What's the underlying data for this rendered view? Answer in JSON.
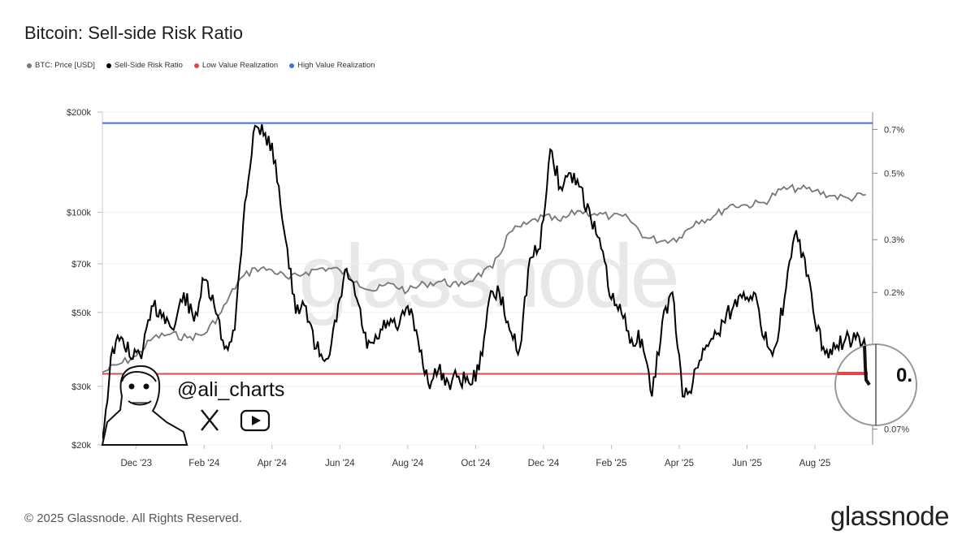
{
  "title": "Bitcoin: Sell-side Risk Ratio",
  "legend": [
    {
      "label": "BTC: Price [USD]",
      "color": "#777777"
    },
    {
      "label": "Sell-Side Risk Ratio",
      "color": "#000000"
    },
    {
      "label": "Low Value Realization",
      "color": "#e04848"
    },
    {
      "label": "High Value Realization",
      "color": "#3d74d9"
    }
  ],
  "watermark": "glassnode",
  "handle": "@ali_charts",
  "zoom_label": "0.",
  "copyright": "© 2025 Glassnode. All Rights Reserved.",
  "brand": "glassnode",
  "social_icons": [
    "x-icon",
    "youtube-icon"
  ],
  "chart_data": {
    "type": "line",
    "title": "Bitcoin: Sell-side Risk Ratio",
    "x_range": [
      "2023-11",
      "2025-09"
    ],
    "x_ticks": [
      "Dec '23",
      "Feb '24",
      "Apr '24",
      "Jun '24",
      "Aug '24",
      "Oct '24",
      "Dec '24",
      "Feb '25",
      "Apr '25",
      "Jun '25",
      "Aug '25"
    ],
    "x_tick_values": [
      1.0,
      3.0,
      5.0,
      7.0,
      9.0,
      11.0,
      13.0,
      15.0,
      17.0,
      19.0,
      21.0
    ],
    "x_domain": [
      0,
      22.7
    ],
    "y_left": {
      "label": "BTC: Price [USD]",
      "scale": "log",
      "ticks": [
        "$20k",
        "$30k",
        "$50k",
        "$70k",
        "$100k",
        "$200k"
      ],
      "tick_values": [
        20000,
        30000,
        50000,
        70000,
        100000,
        200000
      ],
      "range": [
        20000,
        200000
      ]
    },
    "y_right": {
      "label": "Sell-Side Risk Ratio",
      "scale": "log",
      "ticks": [
        "0.07%",
        "0.2%",
        "0.3%",
        "0.5%",
        "0.7%"
      ],
      "tick_values": [
        0.07,
        0.2,
        0.3,
        0.5,
        0.7
      ],
      "range": [
        0.062,
        0.8
      ]
    },
    "low_value_realization": 0.107,
    "high_value_realization": 0.735,
    "series": [
      {
        "name": "BTC: Price [USD]",
        "axis": "left",
        "color": "#777777",
        "x": [
          0,
          0.5,
          1.0,
          1.5,
          2.0,
          2.5,
          3.0,
          3.5,
          4.0,
          4.5,
          5.0,
          5.5,
          6.0,
          6.5,
          7.0,
          7.5,
          8.0,
          8.5,
          9.0,
          9.5,
          10.0,
          10.5,
          11.0,
          11.5,
          12.0,
          12.5,
          13.0,
          13.5,
          14.0,
          14.5,
          15.0,
          15.5,
          16.0,
          16.5,
          17.0,
          17.5,
          18.0,
          18.5,
          19.0,
          19.5,
          20.0,
          20.5,
          21.0,
          21.5,
          22.0,
          22.5
        ],
        "values": [
          33000,
          35000,
          37000,
          42000,
          43000,
          42000,
          43000,
          50000,
          62000,
          68000,
          67000,
          63000,
          66000,
          68000,
          67000,
          62000,
          58000,
          61000,
          58000,
          61000,
          62000,
          60000,
          64000,
          68000,
          87000,
          92000,
          97000,
          94000,
          101000,
          99000,
          97000,
          96000,
          84000,
          82000,
          84000,
          94000,
          97000,
          105000,
          105000,
          107000,
          117000,
          118000,
          116000,
          112000,
          110000,
          113000
        ]
      },
      {
        "name": "Sell-Side Risk Ratio",
        "axis": "right",
        "color": "#000000",
        "x": [
          0,
          0.3,
          0.6,
          0.9,
          1.2,
          1.5,
          1.8,
          2.1,
          2.4,
          2.7,
          3.0,
          3.3,
          3.6,
          3.9,
          4.2,
          4.5,
          4.8,
          5.1,
          5.4,
          5.7,
          6.0,
          6.3,
          6.6,
          6.9,
          7.2,
          7.5,
          7.8,
          8.1,
          8.4,
          8.7,
          9.0,
          9.3,
          9.6,
          9.9,
          10.2,
          10.5,
          10.8,
          11.1,
          11.4,
          11.7,
          12.0,
          12.3,
          12.6,
          12.9,
          13.2,
          13.5,
          13.8,
          14.1,
          14.4,
          14.7,
          15.0,
          15.3,
          15.6,
          15.9,
          16.2,
          16.5,
          16.8,
          17.1,
          17.4,
          17.7,
          18.0,
          18.3,
          18.6,
          18.9,
          19.2,
          19.5,
          19.8,
          20.1,
          20.4,
          20.7,
          21.0,
          21.3,
          21.6,
          21.9,
          22.2,
          22.5,
          22.7
        ],
        "values": [
          0.065,
          0.13,
          0.14,
          0.12,
          0.13,
          0.18,
          0.17,
          0.15,
          0.2,
          0.16,
          0.22,
          0.18,
          0.13,
          0.15,
          0.4,
          0.72,
          0.68,
          0.55,
          0.3,
          0.17,
          0.18,
          0.13,
          0.12,
          0.16,
          0.24,
          0.19,
          0.13,
          0.14,
          0.16,
          0.15,
          0.18,
          0.14,
          0.1,
          0.11,
          0.1,
          0.105,
          0.1,
          0.11,
          0.19,
          0.2,
          0.15,
          0.13,
          0.26,
          0.28,
          0.6,
          0.45,
          0.5,
          0.45,
          0.35,
          0.28,
          0.19,
          0.17,
          0.14,
          0.14,
          0.09,
          0.16,
          0.2,
          0.09,
          0.1,
          0.13,
          0.14,
          0.16,
          0.18,
          0.2,
          0.2,
          0.14,
          0.13,
          0.19,
          0.31,
          0.26,
          0.16,
          0.125,
          0.13,
          0.14,
          0.14,
          0.13,
          0.102
        ]
      }
    ],
    "zoom_inset": {
      "location": "bottom-right",
      "shows": "latest Sell-Side Risk Ratio touching Low Value Realization line"
    }
  }
}
